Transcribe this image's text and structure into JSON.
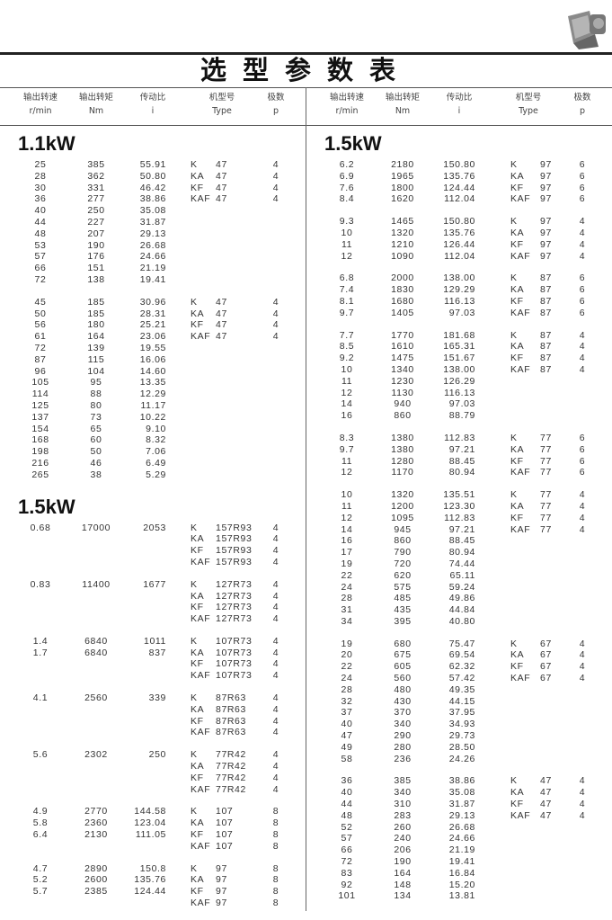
{
  "title": "选型参数表",
  "photo_icon": "gear-reducer-photo",
  "headers": [
    {
      "cn": "输出转速",
      "en": "r/min"
    },
    {
      "cn": "输出转矩",
      "en": "Nm"
    },
    {
      "cn": "传动比",
      "en": "i"
    },
    {
      "cn": "机型号",
      "en": "Type"
    },
    {
      "cn": "极数",
      "en": "p"
    }
  ],
  "left": {
    "sections": [
      {
        "title": "1.1kW",
        "groups": [
          {
            "rows": [
              [
                "25",
                "385",
                "55.91"
              ],
              [
                "28",
                "362",
                "50.80"
              ],
              [
                "30",
                "331",
                "46.42"
              ],
              [
                "36",
                "277",
                "38.86"
              ],
              [
                "40",
                "250",
                "35.08"
              ],
              [
                "44",
                "227",
                "31.87"
              ],
              [
                "48",
                "207",
                "29.13"
              ],
              [
                "53",
                "190",
                "26.68"
              ],
              [
                "57",
                "176",
                "24.66"
              ],
              [
                "66",
                "151",
                "21.19"
              ],
              [
                "72",
                "138",
                "19.41"
              ]
            ],
            "types": [
              [
                "K",
                "47",
                "4"
              ],
              [
                "KA",
                "47",
                "4"
              ],
              [
                "KF",
                "47",
                "4"
              ],
              [
                "KAF",
                "47",
                "4"
              ]
            ]
          },
          {
            "rows": [
              [
                "45",
                "185",
                "30.96"
              ],
              [
                "50",
                "185",
                "28.31"
              ],
              [
                "56",
                "180",
                "25.21"
              ],
              [
                "61",
                "164",
                "23.06"
              ],
              [
                "72",
                "139",
                "19.55"
              ],
              [
                "87",
                "115",
                "16.06"
              ],
              [
                "96",
                "104",
                "14.60"
              ],
              [
                "105",
                "95",
                "13.35"
              ],
              [
                "114",
                "88",
                "12.29"
              ],
              [
                "125",
                "80",
                "11.17"
              ],
              [
                "137",
                "73",
                "10.22"
              ],
              [
                "154",
                "65",
                "9.10"
              ],
              [
                "168",
                "60",
                "8.32"
              ],
              [
                "198",
                "50",
                "7.06"
              ],
              [
                "216",
                "46",
                "6.49"
              ],
              [
                "265",
                "38",
                "5.29"
              ]
            ],
            "types": [
              [
                "K",
                "47",
                "4"
              ],
              [
                "KA",
                "47",
                "4"
              ],
              [
                "KF",
                "47",
                "4"
              ],
              [
                "KAF",
                "47",
                "4"
              ]
            ]
          }
        ]
      },
      {
        "title": "1.5kW",
        "groups": [
          {
            "rows": [
              [
                "0.68",
                "17000",
                "2053"
              ]
            ],
            "types": [
              [
                "K",
                "157R93",
                "4"
              ],
              [
                "KA",
                "157R93",
                "4"
              ],
              [
                "KF",
                "157R93",
                "4"
              ],
              [
                "KAF",
                "157R93",
                "4"
              ]
            ]
          },
          {
            "rows": [
              [
                "0.83",
                "11400",
                "1677"
              ]
            ],
            "types": [
              [
                "K",
                "127R73",
                "4"
              ],
              [
                "KA",
                "127R73",
                "4"
              ],
              [
                "KF",
                "127R73",
                "4"
              ],
              [
                "KAF",
                "127R73",
                "4"
              ]
            ]
          },
          {
            "rows": [
              [
                "1.4",
                "6840",
                "1011"
              ],
              [
                "1.7",
                "6840",
                "837"
              ]
            ],
            "types": [
              [
                "K",
                "107R73",
                "4"
              ],
              [
                "KA",
                "107R73",
                "4"
              ],
              [
                "KF",
                "107R73",
                "4"
              ],
              [
                "KAF",
                "107R73",
                "4"
              ]
            ]
          },
          {
            "rows": [
              [
                "4.1",
                "2560",
                "339"
              ]
            ],
            "types": [
              [
                "K",
                "87R63",
                "4"
              ],
              [
                "KA",
                "87R63",
                "4"
              ],
              [
                "KF",
                "87R63",
                "4"
              ],
              [
                "KAF",
                "87R63",
                "4"
              ]
            ]
          },
          {
            "rows": [
              [
                "5.6",
                "2302",
                "250"
              ]
            ],
            "types": [
              [
                "K",
                "77R42",
                "4"
              ],
              [
                "KA",
                "77R42",
                "4"
              ],
              [
                "KF",
                "77R42",
                "4"
              ],
              [
                "KAF",
                "77R42",
                "4"
              ]
            ]
          },
          {
            "rows": [
              [
                "4.9",
                "2770",
                "144.58"
              ],
              [
                "5.8",
                "2360",
                "123.04"
              ],
              [
                "6.4",
                "2130",
                "111.05"
              ]
            ],
            "types": [
              [
                "K",
                "107",
                "8"
              ],
              [
                "KA",
                "107",
                "8"
              ],
              [
                "KF",
                "107",
                "8"
              ],
              [
                "KAF",
                "107",
                "8"
              ]
            ]
          },
          {
            "rows": [
              [
                "4.7",
                "2890",
                "150.8"
              ],
              [
                "5.2",
                "2600",
                "135.76"
              ],
              [
                "5.7",
                "2385",
                "124.44"
              ]
            ],
            "types": [
              [
                "K",
                "97",
                "8"
              ],
              [
                "KA",
                "97",
                "8"
              ],
              [
                "KF",
                "97",
                "8"
              ],
              [
                "KAF",
                "97",
                "8"
              ]
            ]
          }
        ]
      }
    ]
  },
  "right": {
    "sections": [
      {
        "title": "1.5kW",
        "groups": [
          {
            "rows": [
              [
                "6.2",
                "2180",
                "150.80"
              ],
              [
                "6.9",
                "1965",
                "135.76"
              ],
              [
                "7.6",
                "1800",
                "124.44"
              ],
              [
                "8.4",
                "1620",
                "112.04"
              ]
            ],
            "types": [
              [
                "K",
                "97",
                "6"
              ],
              [
                "KA",
                "97",
                "6"
              ],
              [
                "KF",
                "97",
                "6"
              ],
              [
                "KAF",
                "97",
                "6"
              ]
            ]
          },
          {
            "rows": [
              [
                "9.3",
                "1465",
                "150.80"
              ],
              [
                "10",
                "1320",
                "135.76"
              ],
              [
                "11",
                "1210",
                "126.44"
              ],
              [
                "12",
                "1090",
                "112.04"
              ]
            ],
            "types": [
              [
                "K",
                "97",
                "4"
              ],
              [
                "KA",
                "97",
                "4"
              ],
              [
                "KF",
                "97",
                "4"
              ],
              [
                "KAF",
                "97",
                "4"
              ]
            ]
          },
          {
            "rows": [
              [
                "6.8",
                "2000",
                "138.00"
              ],
              [
                "7.4",
                "1830",
                "129.29"
              ],
              [
                "8.1",
                "1680",
                "116.13"
              ],
              [
                "9.7",
                "1405",
                "97.03"
              ]
            ],
            "types": [
              [
                "K",
                "87",
                "6"
              ],
              [
                "KA",
                "87",
                "6"
              ],
              [
                "KF",
                "87",
                "6"
              ],
              [
                "KAF",
                "87",
                "6"
              ]
            ]
          },
          {
            "rows": [
              [
                "7.7",
                "1770",
                "181.68"
              ],
              [
                "8.5",
                "1610",
                "165.31"
              ],
              [
                "9.2",
                "1475",
                "151.67"
              ],
              [
                "10",
                "1340",
                "138.00"
              ],
              [
                "11",
                "1230",
                "126.29"
              ],
              [
                "12",
                "1130",
                "116.13"
              ],
              [
                "14",
                "940",
                "97.03"
              ],
              [
                "16",
                "860",
                "88.79"
              ]
            ],
            "types": [
              [
                "K",
                "87",
                "4"
              ],
              [
                "KA",
                "87",
                "4"
              ],
              [
                "KF",
                "87",
                "4"
              ],
              [
                "KAF",
                "87",
                "4"
              ]
            ]
          },
          {
            "rows": [
              [
                "8.3",
                "1380",
                "112.83"
              ],
              [
                "9.7",
                "1380",
                "97.21"
              ],
              [
                "11",
                "1280",
                "88.45"
              ],
              [
                "12",
                "1170",
                "80.94"
              ]
            ],
            "types": [
              [
                "K",
                "77",
                "6"
              ],
              [
                "KA",
                "77",
                "6"
              ],
              [
                "KF",
                "77",
                "6"
              ],
              [
                "KAF",
                "77",
                "6"
              ]
            ]
          },
          {
            "rows": [
              [
                "10",
                "1320",
                "135.51"
              ],
              [
                "11",
                "1200",
                "123.30"
              ],
              [
                "12",
                "1095",
                "112.83"
              ],
              [
                "14",
                "945",
                "97.21"
              ],
              [
                "16",
                "860",
                "88.45"
              ],
              [
                "17",
                "790",
                "80.94"
              ],
              [
                "19",
                "720",
                "74.44"
              ],
              [
                "22",
                "620",
                "65.11"
              ],
              [
                "24",
                "575",
                "59.24"
              ],
              [
                "28",
                "485",
                "49.86"
              ],
              [
                "31",
                "435",
                "44.84"
              ],
              [
                "34",
                "395",
                "40.80"
              ]
            ],
            "types": [
              [
                "K",
                "77",
                "4"
              ],
              [
                "KA",
                "77",
                "4"
              ],
              [
                "KF",
                "77",
                "4"
              ],
              [
                "KAF",
                "77",
                "4"
              ]
            ]
          },
          {
            "rows": [
              [
                "19",
                "680",
                "75.47"
              ],
              [
                "20",
                "675",
                "69.54"
              ],
              [
                "22",
                "605",
                "62.32"
              ],
              [
                "24",
                "560",
                "57.42"
              ],
              [
                "28",
                "480",
                "49.35"
              ],
              [
                "32",
                "430",
                "44.15"
              ],
              [
                "37",
                "370",
                "37.95"
              ],
              [
                "40",
                "340",
                "34.93"
              ],
              [
                "47",
                "290",
                "29.73"
              ],
              [
                "49",
                "280",
                "28.50"
              ],
              [
                "58",
                "236",
                "24.26"
              ]
            ],
            "types": [
              [
                "K",
                "67",
                "4"
              ],
              [
                "KA",
                "67",
                "4"
              ],
              [
                "KF",
                "67",
                "4"
              ],
              [
                "KAF",
                "67",
                "4"
              ]
            ]
          },
          {
            "rows": [
              [
                "36",
                "385",
                "38.86"
              ],
              [
                "40",
                "340",
                "35.08"
              ],
              [
                "44",
                "310",
                "31.87"
              ],
              [
                "48",
                "283",
                "29.13"
              ],
              [
                "52",
                "260",
                "26.68"
              ],
              [
                "57",
                "240",
                "24.66"
              ],
              [
                "66",
                "206",
                "21.19"
              ],
              [
                "72",
                "190",
                "19.41"
              ],
              [
                "83",
                "164",
                "16.84"
              ],
              [
                "92",
                "148",
                "15.20"
              ],
              [
                "101",
                "134",
                "13.81"
              ]
            ],
            "types": [
              [
                "K",
                "47",
                "4"
              ],
              [
                "KA",
                "47",
                "4"
              ],
              [
                "KF",
                "47",
                "4"
              ],
              [
                "KAF",
                "47",
                "4"
              ]
            ]
          }
        ]
      }
    ]
  }
}
